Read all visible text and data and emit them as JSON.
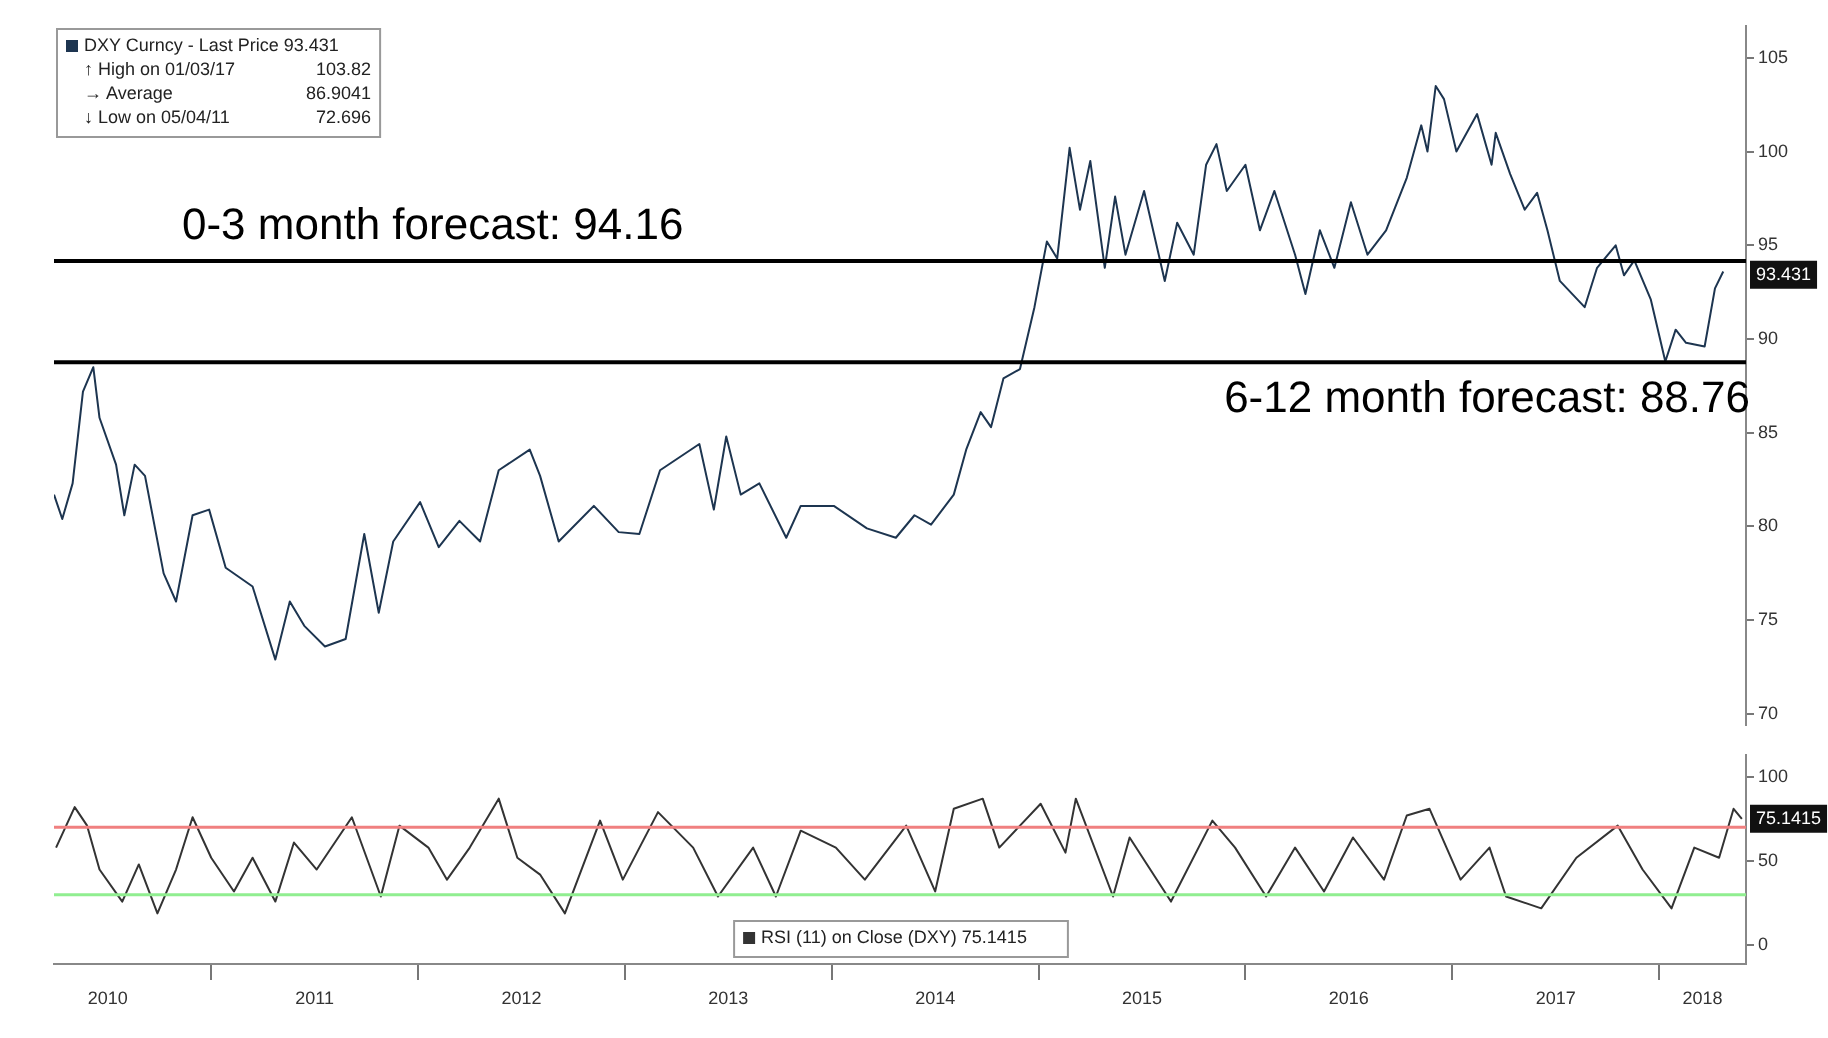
{
  "chart_data": [
    {
      "type": "line",
      "xlim": [
        2010.24,
        2018.42
      ],
      "ylim": [
        69.4,
        106.7
      ],
      "yticks": [
        70,
        75,
        80,
        85,
        90,
        95,
        100,
        105
      ],
      "tick_labels": "y",
      "grid": false,
      "legend": "top left",
      "marker": "none",
      "line_style": "solid",
      "annotations": [
        "↑ High on 01/03/17 103.82",
        "→ Average 86.9041",
        "↓ Low on 05/04/11 72.696",
        {
          "text": "93.431",
          "y": 93.431
        }
      ],
      "ref_lines": [
        {
          "axis": "y",
          "value": 94.16,
          "label": "0-3 month forecast: 94.16",
          "color": "#000000"
        },
        {
          "axis": "y",
          "value": 88.76,
          "label": "6-12 month forecast: 88.76",
          "color": "#000000"
        }
      ],
      "series": [
        {
          "name": "DXY Curncy - Last Price 93.431",
          "color": "#1d3550",
          "x": [
            2010.24,
            2010.28,
            2010.33,
            2010.38,
            2010.43,
            2010.46,
            2010.54,
            2010.58,
            2010.63,
            2010.68,
            2010.77,
            2010.83,
            2010.91,
            2010.99,
            2011.07,
            2011.2,
            2011.31,
            2011.38,
            2011.45,
            2011.55,
            2011.65,
            2011.74,
            2011.81,
            2011.88,
            2012.01,
            2012.1,
            2012.2,
            2012.3,
            2012.39,
            2012.54,
            2012.59,
            2012.68,
            2012.85,
            2012.97,
            2013.07,
            2013.17,
            2013.36,
            2013.43,
            2013.49,
            2013.56,
            2013.65,
            2013.78,
            2013.85,
            2014.01,
            2014.17,
            2014.31,
            2014.4,
            2014.48,
            2014.59,
            2014.65,
            2014.72,
            2014.77,
            2014.83,
            2014.91,
            2014.98,
            2015.04,
            2015.09,
            2015.15,
            2015.2,
            2015.25,
            2015.32,
            2015.37,
            2015.42,
            2015.51,
            2015.61,
            2015.67,
            2015.75,
            2015.81,
            2015.86,
            2015.91,
            2016.0,
            2016.07,
            2016.14,
            2016.24,
            2016.29,
            2016.36,
            2016.43,
            2016.51,
            2016.59,
            2016.68,
            2016.78,
            2016.85,
            2016.88,
            2016.92,
            2016.96,
            2017.02,
            2017.12,
            2017.19,
            2017.21,
            2017.28,
            2017.35,
            2017.41,
            2017.46,
            2017.52,
            2017.64,
            2017.7,
            2017.79,
            2017.83,
            2017.88,
            2017.96,
            2018.03,
            2018.08,
            2018.13,
            2018.22,
            2018.27,
            2018.31
          ],
          "values": [
            81.7,
            80.4,
            82.3,
            87.2,
            88.5,
            85.8,
            83.3,
            80.6,
            83.3,
            82.7,
            77.5,
            76.0,
            80.6,
            80.9,
            77.8,
            76.8,
            72.9,
            76.0,
            74.7,
            73.6,
            74.0,
            79.6,
            75.4,
            79.2,
            81.3,
            78.9,
            80.3,
            79.2,
            83.0,
            84.1,
            82.7,
            79.2,
            81.1,
            79.7,
            79.6,
            83.0,
            84.4,
            80.9,
            84.8,
            81.7,
            82.3,
            79.4,
            81.1,
            81.1,
            79.9,
            79.4,
            80.6,
            80.1,
            81.7,
            84.1,
            86.1,
            85.3,
            87.9,
            88.4,
            91.7,
            95.2,
            94.3,
            100.2,
            96.9,
            99.5,
            93.8,
            97.6,
            94.5,
            97.9,
            93.1,
            96.2,
            94.5,
            99.3,
            100.4,
            97.9,
            99.3,
            95.8,
            97.9,
            94.5,
            92.4,
            95.8,
            93.8,
            97.3,
            94.5,
            95.8,
            98.6,
            101.4,
            100.0,
            103.5,
            102.8,
            100.0,
            102.0,
            99.3,
            101.0,
            98.8,
            96.9,
            97.8,
            95.8,
            93.1,
            91.7,
            93.8,
            95.0,
            93.4,
            94.2,
            92.1,
            88.8,
            90.5,
            89.8,
            89.6,
            92.7,
            93.6
          ]
        }
      ]
    },
    {
      "type": "line",
      "xlim": [
        2010.24,
        2018.42
      ],
      "ylim": [
        -11,
        113
      ],
      "yticks": [
        0,
        50,
        100
      ],
      "grid": false,
      "legend": "bottom",
      "marker": "none",
      "line_style": "solid",
      "xticks": [
        {
          "value": 2010.5,
          "label": "2010"
        },
        {
          "value": 2011,
          "label": null
        },
        {
          "value": 2011.5,
          "label": "2011"
        },
        {
          "value": 2012,
          "label": null
        },
        {
          "value": 2012.5,
          "label": "2012"
        },
        {
          "value": 2013,
          "label": null
        },
        {
          "value": 2013.5,
          "label": "2013"
        },
        {
          "value": 2014,
          "label": null
        },
        {
          "value": 2014.5,
          "label": "2014"
        },
        {
          "value": 2015,
          "label": null
        },
        {
          "value": 2015.5,
          "label": "2015"
        },
        {
          "value": 2016,
          "label": null
        },
        {
          "value": 2016.5,
          "label": "2016"
        },
        {
          "value": 2017,
          "label": null
        },
        {
          "value": 2017.5,
          "label": "2017"
        },
        {
          "value": 2018,
          "label": null
        },
        {
          "value": 2018.21,
          "label": "2018"
        }
      ],
      "annotations": [
        {
          "text": "75.1415",
          "y": 75.1415
        }
      ],
      "ref_lines": [
        {
          "axis": "y",
          "value": 70,
          "color": "#f08080"
        },
        {
          "axis": "y",
          "value": 30,
          "color": "#90ee90"
        }
      ],
      "series": [
        {
          "name": "RSI (11) on Close (DXY) 75.1415",
          "color": "#333333",
          "x": [
            2010.25,
            2010.34,
            2010.4,
            2010.46,
            2010.57,
            2010.65,
            2010.74,
            2010.83,
            2010.91,
            2011.0,
            2011.11,
            2011.2,
            2011.31,
            2011.4,
            2011.51,
            2011.68,
            2011.82,
            2011.91,
            2012.05,
            2012.14,
            2012.25,
            2012.39,
            2012.48,
            2012.59,
            2012.71,
            2012.88,
            2012.99,
            2013.16,
            2013.33,
            2013.45,
            2013.62,
            2013.73,
            2013.85,
            2014.02,
            2014.16,
            2014.36,
            2014.5,
            2014.59,
            2014.73,
            2014.81,
            2015.01,
            2015.13,
            2015.18,
            2015.36,
            2015.44,
            2015.64,
            2015.84,
            2015.95,
            2016.1,
            2016.24,
            2016.38,
            2016.52,
            2016.67,
            2016.78,
            2016.89,
            2017.04,
            2017.18,
            2017.26,
            2017.43,
            2017.6,
            2017.8,
            2017.92,
            2018.06,
            2018.17,
            2018.29,
            2018.36,
            2018.4
          ],
          "values": [
            58,
            82,
            71,
            45,
            26,
            48,
            19,
            45,
            76,
            52,
            32,
            52,
            26,
            61,
            45,
            76,
            29,
            71,
            58,
            39,
            58,
            87,
            52,
            42,
            19,
            74,
            39,
            79,
            58,
            29,
            58,
            29,
            68,
            58,
            39,
            71,
            32,
            81,
            87,
            58,
            84,
            55,
            87,
            29,
            64,
            26,
            74,
            58,
            29,
            58,
            32,
            64,
            39,
            77,
            81,
            39,
            58,
            29,
            22,
            52,
            71,
            45,
            22,
            58,
            52,
            81,
            75
          ]
        }
      ]
    }
  ]
}
